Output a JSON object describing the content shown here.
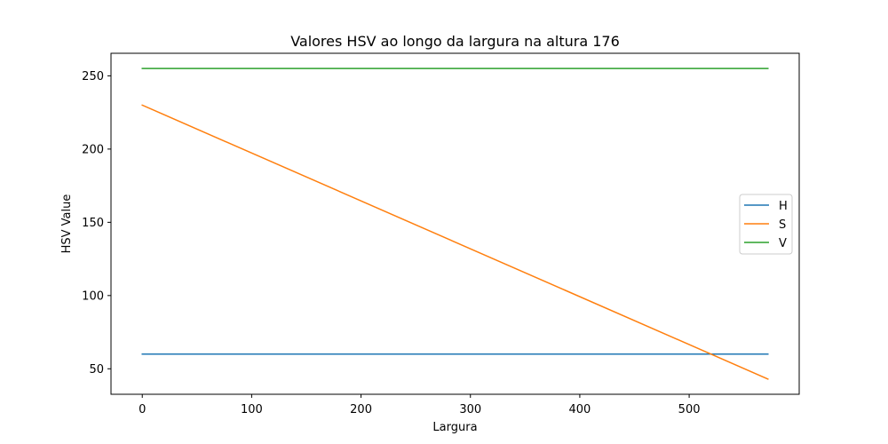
{
  "chart_data": {
    "type": "line",
    "title": "Valores HSV ao longo da largura na altura 176",
    "xlabel": "Largura",
    "ylabel": "HSV Value",
    "xlim": [
      -28.6,
      600.6
    ],
    "ylim": [
      32.6,
      265.4
    ],
    "xticks": [
      0,
      100,
      200,
      300,
      400,
      500
    ],
    "yticks": [
      50,
      100,
      150,
      200,
      250
    ],
    "grid": false,
    "legend_position": "center-right",
    "series": [
      {
        "name": "H",
        "color": "#1f77b4",
        "x": [
          0,
          572
        ],
        "y": [
          60,
          60
        ]
      },
      {
        "name": "S",
        "color": "#ff7f0e",
        "x": [
          0,
          572
        ],
        "y": [
          230,
          43
        ]
      },
      {
        "name": "V",
        "color": "#2ca02c",
        "x": [
          0,
          572
        ],
        "y": [
          255,
          255
        ]
      }
    ]
  }
}
